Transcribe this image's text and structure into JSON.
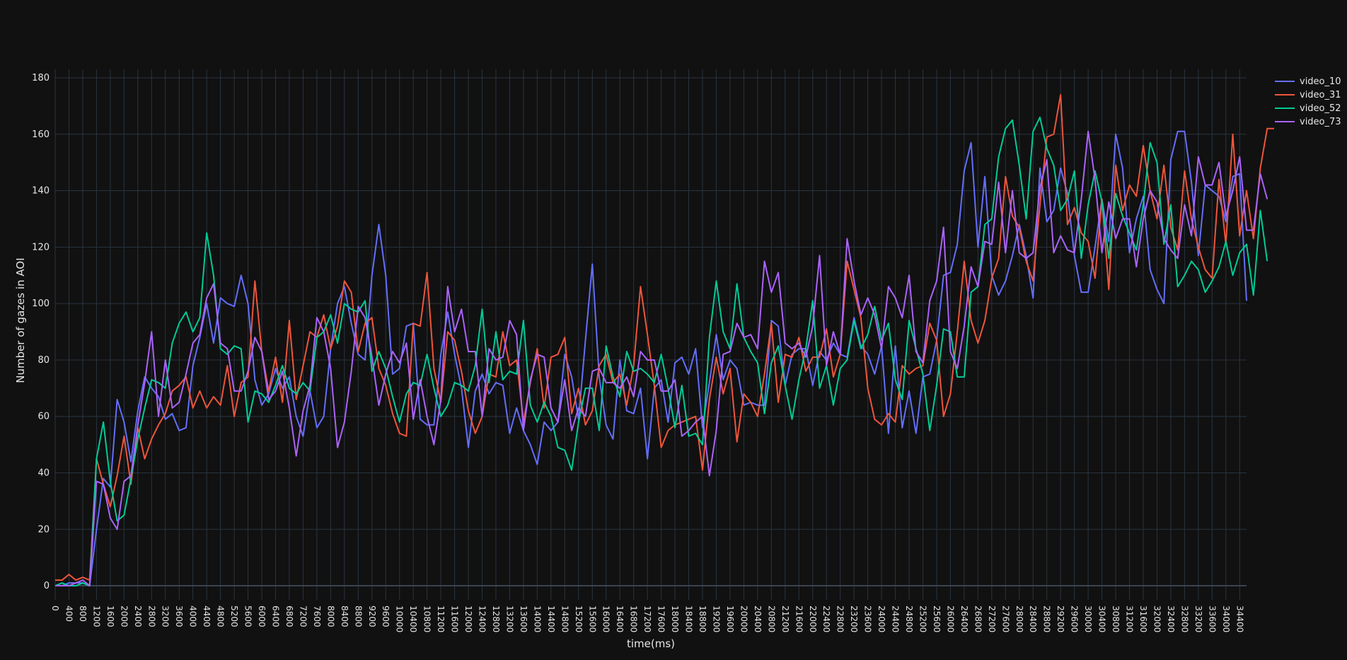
{
  "chart_data": {
    "type": "line",
    "title": "",
    "xlabel": "time(ms)",
    "ylabel": "Number of gazes in AOI",
    "ylim": [
      -5,
      183
    ],
    "y_ticks": [
      0,
      20,
      40,
      60,
      80,
      100,
      120,
      140,
      160,
      180
    ],
    "x_step_ms": 200,
    "x_tick_every_ms": 400,
    "grid": true,
    "legend_position": "top-right",
    "series": [
      {
        "name": "video_10",
        "color": "#636efa",
        "values": [
          0,
          0,
          1,
          1,
          1,
          0,
          20,
          38,
          35,
          66,
          58,
          44,
          62,
          74,
          70,
          67,
          59,
          61,
          55,
          56,
          78,
          88,
          100,
          86,
          102,
          100,
          99,
          110,
          100,
          73,
          64,
          68,
          77,
          70,
          74,
          60,
          53,
          69,
          56,
          60,
          84,
          100,
          106,
          93,
          82,
          80,
          110,
          128,
          110,
          75,
          77,
          92,
          93,
          59,
          57,
          57,
          82,
          97,
          82,
          70,
          49,
          69,
          75,
          68,
          72,
          71,
          54,
          63,
          55,
          50,
          43,
          58,
          55,
          58,
          82,
          74,
          59,
          87,
          114,
          74,
          57,
          52,
          80,
          62,
          61,
          70,
          45,
          70,
          73,
          58,
          79,
          81,
          75,
          84,
          56,
          72,
          89,
          73,
          80,
          77,
          64,
          65,
          64,
          64,
          94,
          92,
          71,
          82,
          84,
          84,
          71,
          83,
          80,
          86,
          82,
          81,
          95,
          85,
          82,
          75,
          85,
          54,
          85,
          56,
          69,
          54,
          74,
          75,
          87,
          110,
          111,
          121,
          147,
          157,
          120,
          145,
          110,
          103,
          108,
          117,
          128,
          117,
          102,
          148,
          129,
          133,
          148,
          139,
          117,
          104,
          104,
          120,
          137,
          122,
          160,
          148,
          118,
          130,
          138,
          112,
          105,
          100,
          151,
          161,
          161,
          143,
          117,
          142,
          140,
          138,
          129,
          145,
          146,
          101
        ]
      },
      {
        "name": "video_31",
        "color": "#ef553b",
        "values": [
          2,
          2,
          4,
          2,
          3,
          2,
          45,
          36,
          28,
          39,
          53,
          36,
          56,
          45,
          52,
          57,
          61,
          69,
          71,
          74,
          63,
          69,
          63,
          67,
          64,
          78,
          60,
          72,
          74,
          108,
          83,
          69,
          81,
          65,
          94,
          66,
          78,
          90,
          88,
          96,
          84,
          92,
          108,
          104,
          83,
          93,
          95,
          77,
          71,
          61,
          54,
          53,
          93,
          92,
          111,
          77,
          65,
          90,
          87,
          76,
          62,
          54,
          60,
          75,
          74,
          90,
          78,
          80,
          58,
          72,
          84,
          63,
          81,
          82,
          88,
          61,
          70,
          57,
          62,
          78,
          82,
          72,
          75,
          64,
          78,
          106,
          89,
          71,
          49,
          55,
          57,
          58,
          59,
          60,
          41,
          66,
          81,
          68,
          77,
          51,
          68,
          65,
          60,
          75,
          93,
          65,
          82,
          81,
          88,
          76,
          81,
          81,
          91,
          74,
          82,
          115,
          105,
          95,
          70,
          59,
          57,
          61,
          58,
          78,
          75,
          77,
          78,
          93,
          87,
          60,
          68,
          90,
          115,
          94,
          86,
          94,
          109,
          116,
          145,
          131,
          127,
          115,
          108,
          135,
          159,
          160,
          174,
          128,
          134,
          125,
          122,
          109,
          137,
          105,
          149,
          133,
          142,
          138,
          156,
          140,
          130,
          149,
          127,
          119,
          147,
          130,
          120,
          112,
          109,
          144,
          121,
          160,
          124,
          140,
          123,
          148,
          162,
          162
        ]
      },
      {
        "name": "video_52",
        "color": "#00cc96",
        "values": [
          0,
          1,
          0,
          0,
          1,
          0,
          45,
          58,
          37,
          23,
          25,
          38,
          52,
          63,
          73,
          72,
          70,
          86,
          93,
          97,
          90,
          95,
          125,
          110,
          84,
          82,
          85,
          84,
          58,
          69,
          68,
          65,
          71,
          78,
          70,
          68,
          72,
          69,
          88,
          90,
          96,
          86,
          100,
          98,
          97,
          101,
          76,
          83,
          77,
          67,
          58,
          68,
          72,
          71,
          82,
          70,
          60,
          64,
          72,
          71,
          69,
          78,
          98,
          72,
          90,
          73,
          76,
          75,
          94,
          64,
          58,
          65,
          60,
          49,
          48,
          41,
          58,
          70,
          70,
          55,
          85,
          74,
          67,
          83,
          76,
          77,
          75,
          72,
          82,
          70,
          56,
          71,
          53,
          54,
          50,
          88,
          108,
          90,
          84,
          107,
          88,
          83,
          79,
          61,
          79,
          85,
          71,
          59,
          73,
          84,
          101,
          70,
          78,
          64,
          77,
          80,
          94,
          84,
          89,
          99,
          87,
          93,
          73,
          66,
          94,
          84,
          75,
          55,
          71,
          91,
          90,
          74,
          74,
          104,
          106,
          128,
          130,
          152,
          162,
          165,
          149,
          130,
          161,
          166,
          155,
          149,
          133,
          137,
          147,
          116,
          135,
          147,
          136,
          116,
          139,
          131,
          125,
          119,
          135,
          157,
          150,
          121,
          135,
          106,
          110,
          115,
          112,
          104,
          108,
          113,
          122,
          110,
          118,
          121,
          103,
          133,
          115
        ]
      },
      {
        "name": "video_73",
        "color": "#ab63fa",
        "values": [
          0,
          0,
          0,
          1,
          2,
          0,
          37,
          36,
          24,
          20,
          37,
          39,
          57,
          72,
          90,
          60,
          80,
          63,
          65,
          75,
          86,
          89,
          102,
          107,
          86,
          84,
          69,
          69,
          76,
          88,
          83,
          66,
          69,
          76,
          63,
          46,
          62,
          71,
          95,
          90,
          77,
          49,
          58,
          76,
          99,
          95,
          81,
          64,
          75,
          83,
          79,
          86,
          59,
          73,
          60,
          50,
          66,
          106,
          90,
          98,
          83,
          83,
          60,
          84,
          80,
          81,
          94,
          89,
          55,
          73,
          82,
          81,
          63,
          58,
          73,
          55,
          63,
          60,
          76,
          77,
          72,
          72,
          70,
          74,
          67,
          83,
          80,
          80,
          69,
          69,
          73,
          53,
          55,
          58,
          60,
          39,
          55,
          82,
          83,
          93,
          88,
          89,
          84,
          115,
          104,
          111,
          86,
          84,
          86,
          81,
          92,
          117,
          78,
          90,
          82,
          123,
          108,
          96,
          102,
          96,
          84,
          106,
          102,
          95,
          110,
          83,
          79,
          101,
          108,
          127,
          83,
          77,
          92,
          113,
          106,
          122,
          121,
          143,
          118,
          140,
          118,
          116,
          118,
          141,
          151,
          118,
          124,
          119,
          118,
          137,
          161,
          144,
          118,
          136,
          123,
          130,
          130,
          113,
          130,
          140,
          136,
          123,
          119,
          116,
          135,
          124,
          152,
          142,
          142,
          150,
          131,
          140,
          152,
          126,
          126,
          146,
          137
        ]
      }
    ]
  }
}
